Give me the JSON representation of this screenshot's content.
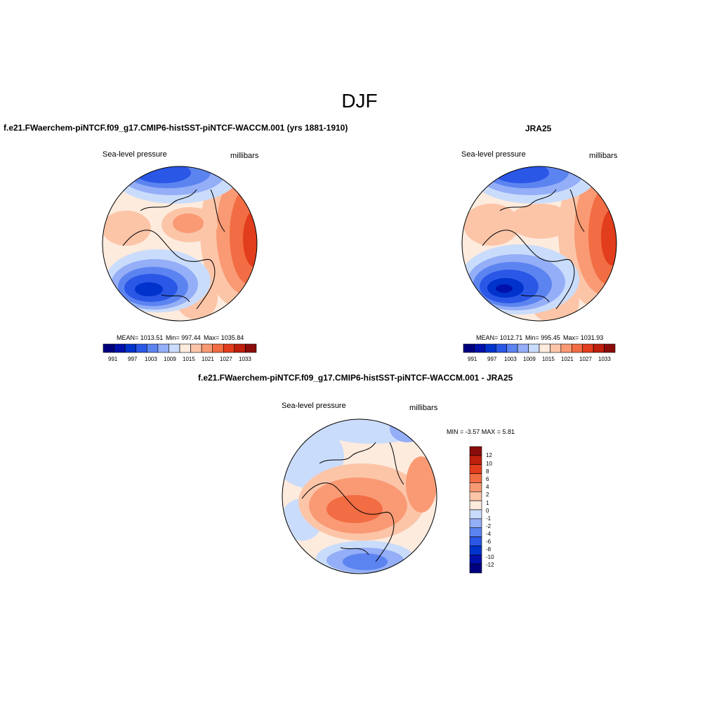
{
  "season_title": "DJF",
  "colors": {
    "horizontal_bar": [
      "#00007f",
      "#0010ab",
      "#0033cc",
      "#2a57e6",
      "#5c84f0",
      "#94aef7",
      "#cadcfb",
      "#fdebde",
      "#fcc5a8",
      "#f99a74",
      "#f26d43",
      "#e23d1c",
      "#bf1f0c",
      "#8a0d0b"
    ],
    "vertical_bar_top_to_bottom": [
      "#8a0d0b",
      "#bf1f0c",
      "#e23d1c",
      "#f26d43",
      "#f99a74",
      "#fcc5a8",
      "#fdebde",
      "#cadcfb",
      "#94aef7",
      "#5c84f0",
      "#2a57e6",
      "#0033cc",
      "#0010ab",
      "#00007f"
    ],
    "outline": "#000000"
  },
  "panels": {
    "model": {
      "case_title": "f.e21.FWaerchem-piNTCF.f09_g17.CMIP6-histSST-piNTCF-WACCM.001 (yrs 1881-1910)",
      "left_label": "Sea-level pressure",
      "right_label": "millibars",
      "mean_text": "MEAN= 1013.51",
      "min_text": "Min= 997.44",
      "max_text": "Max= 1035.84",
      "colorbar_labels": [
        "991",
        "997",
        "1003",
        "1009",
        "1015",
        "1021",
        "1027",
        "1033"
      ]
    },
    "obs": {
      "case_title": "JRA25",
      "left_label": "Sea-level pressure",
      "right_label": "millibars",
      "mean_text": "MEAN= 1012.71",
      "min_text": "Min= 995.45",
      "max_text": "Max= 1031.93",
      "colorbar_labels": [
        "991",
        "997",
        "1003",
        "1009",
        "1015",
        "1021",
        "1027",
        "1033"
      ]
    },
    "diff": {
      "case_title": "f.e21.FWaerchem-piNTCF.f09_g17.CMIP6-histSST-piNTCF-WACCM.001 - JRA25",
      "left_label": "Sea-level pressure",
      "right_label": "millibars",
      "minmax_text": "MIN =  -3.57 MAX =   5.81",
      "colorbar_labels": [
        "12",
        "10",
        "8",
        "6",
        "4",
        "2",
        "1",
        "0",
        "-1",
        "-2",
        "-4",
        "-6",
        "-8",
        "-10",
        "-12"
      ]
    }
  }
}
